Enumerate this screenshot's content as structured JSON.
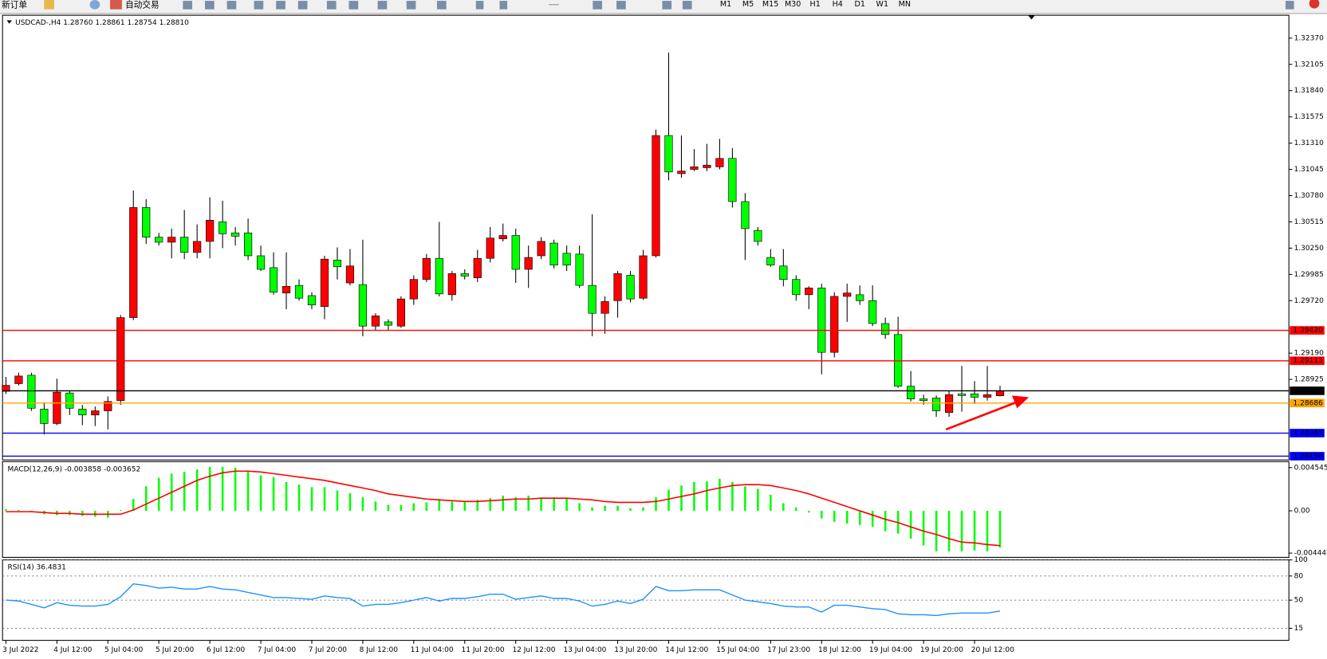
{
  "toolbar": {
    "items": [
      "新订单",
      "自动交易"
    ],
    "timeframes": [
      "M1",
      "M5",
      "M15",
      "M30",
      "H1",
      "H4",
      "D1",
      "W1",
      "MN"
    ]
  },
  "chart_data": [
    {
      "type": "candlestick",
      "title": "USDCAD-,H4  1.28760 1.28861 1.28754 1.28810",
      "categories": [
        "3 Jul 2022",
        null,
        null,
        null,
        "4 Jul 12:00",
        null,
        null,
        null,
        "5 Jul 04:00",
        null,
        null,
        null,
        "5 Jul 20:00",
        null,
        null,
        null,
        "6 Jul 12:00",
        null,
        null,
        null,
        "7 Jul 04:00",
        null,
        null,
        null,
        "7 Jul 20:00",
        null,
        null,
        null,
        "8 Jul 12:00",
        null,
        null,
        null,
        "11 Jul 04:00",
        null,
        null,
        null,
        "11 Jul 20:00",
        null,
        null,
        null,
        "12 Jul 12:00",
        null,
        null,
        null,
        "13 Jul 04:00",
        null,
        null,
        null,
        "13 Jul 20:00",
        null,
        null,
        null,
        "14 Jul 12:00",
        null,
        null,
        null,
        "15 Jul 04:00",
        null,
        null,
        null,
        "17 Jul 23:00",
        null,
        null,
        null,
        "18 Jul 12:00",
        null,
        null,
        null,
        "19 Jul 04:00",
        null,
        null,
        null,
        "19 Jul 20:00",
        null,
        null,
        null,
        "20 Jul 12:00",
        null,
        null
      ],
      "open": [
        1.28805,
        1.28882,
        1.28967,
        1.28625,
        1.2848,
        1.28788,
        1.28625,
        1.28566,
        1.28608,
        1.28711,
        1.29549,
        1.3066,
        1.30361,
        1.3031,
        1.30361,
        1.30207,
        1.30318,
        1.30515,
        1.30404,
        1.30404,
        1.30173,
        1.30053,
        1.29797,
        1.29874,
        1.29771,
        1.2966,
        1.3013,
        1.29899,
        1.29882,
        1.29463,
        1.29506,
        1.29463,
        1.29737,
        1.29934,
        1.30147,
        1.2978,
        1.29993,
        1.29951,
        1.30147,
        1.30344,
        1.30378,
        1.30036,
        1.30173,
        1.30301,
        1.30198,
        1.3019,
        1.29874,
        1.29592,
        1.2972,
        1.29976,
        1.29745,
        1.30173,
        1.31387,
        1.31002,
        1.31045,
        1.31062,
        1.31071,
        1.31156,
        1.3072,
        1.30429,
        1.30156,
        1.3007,
        1.29934,
        1.2978,
        1.29848,
        1.29198,
        1.29763,
        1.2978,
        1.2972,
        1.29489,
        1.29378,
        1.28856,
        1.28728,
        1.28737,
        1.28591,
        1.28779,
        1.28779,
        1.28745,
        1.2876
      ],
      "high": [
        1.2895,
        1.28993,
        1.28993,
        1.28694,
        1.28933,
        1.28805,
        1.28668,
        1.28651,
        1.28754,
        1.29574,
        1.30831,
        1.30746,
        1.30404,
        1.30447,
        1.30635,
        1.30489,
        1.30763,
        1.30729,
        1.30464,
        1.30549,
        1.30276,
        1.30207,
        1.30207,
        1.29934,
        1.29805,
        1.30173,
        1.30258,
        1.30241,
        1.30335,
        1.29592,
        1.29532,
        1.29763,
        1.29976,
        1.3019,
        1.30515,
        1.30019,
        1.30036,
        1.30233,
        1.30464,
        1.30498,
        1.30447,
        1.30276,
        1.30361,
        1.30335,
        1.30276,
        1.30276,
        1.30592,
        1.29763,
        1.30019,
        1.30019,
        1.30233,
        1.31447,
        1.32225,
        1.31387,
        1.3125,
        1.31302,
        1.31353,
        1.31259,
        1.30806,
        1.30464,
        1.30241,
        1.30241,
        1.29976,
        1.29865,
        1.29891,
        1.29805,
        1.29891,
        1.29874,
        1.29874,
        1.29549,
        1.29557,
        1.2901,
        1.28771,
        1.28762,
        1.28805,
        1.29061,
        1.28908,
        1.29061,
        1.28861
      ],
      "low": [
        1.28779,
        1.28865,
        1.28608,
        1.28369,
        1.28463,
        1.28566,
        1.28463,
        1.28454,
        1.2842,
        1.28668,
        1.29523,
        1.30293,
        1.30276,
        1.30147,
        1.30139,
        1.30147,
        1.30147,
        1.3025,
        1.30276,
        1.3013,
        1.30019,
        1.2978,
        1.29634,
        1.2972,
        1.29634,
        1.29532,
        1.29934,
        1.29874,
        1.29361,
        1.29421,
        1.29421,
        1.29446,
        1.29677,
        1.29908,
        1.29763,
        1.2972,
        1.29934,
        1.29908,
        1.30105,
        1.30318,
        1.29899,
        1.29848,
        1.30139,
        1.30045,
        1.30019,
        1.29848,
        1.29361,
        1.29386,
        1.29549,
        1.29703,
        1.29728,
        1.30156,
        1.30934,
        1.3096,
        1.31028,
        1.31028,
        1.31045,
        1.3066,
        1.3013,
        1.30276,
        1.30062,
        1.29865,
        1.2972,
        1.29634,
        1.28976,
        1.29147,
        1.29506,
        1.29677,
        1.29463,
        1.29335,
        1.28839,
        1.28702,
        1.28668,
        1.28548,
        1.28548,
        1.286,
        1.28677,
        1.28711,
        1.28754
      ],
      "close": [
        1.28865,
        1.28959,
        1.28634,
        1.2848,
        1.28796,
        1.28634,
        1.28566,
        1.28608,
        1.28702,
        1.29549,
        1.3066,
        1.30361,
        1.3031,
        1.30361,
        1.30207,
        1.30318,
        1.30532,
        1.30395,
        1.3037,
        1.30173,
        1.30036,
        1.29805,
        1.29865,
        1.29745,
        1.29677,
        1.30139,
        1.30062,
        1.3007,
        1.29463,
        1.29566,
        1.29472,
        1.29737,
        1.29934,
        1.30147,
        1.29788,
        1.29993,
        1.29968,
        1.30147,
        1.30352,
        1.30378,
        1.30036,
        1.30156,
        1.30318,
        1.30079,
        1.30079,
        1.29874,
        1.29592,
        1.29711,
        1.29993,
        1.29737,
        1.30173,
        1.31387,
        1.31019,
        1.31028,
        1.31071,
        1.31088,
        1.31156,
        1.3072,
        1.30447,
        1.30318,
        1.30079,
        1.29934,
        1.2978,
        1.29848,
        1.29198,
        1.29763,
        1.29797,
        1.2972,
        1.29489,
        1.29378,
        1.28856,
        1.28728,
        1.28711,
        1.28608,
        1.28771,
        1.28762,
        1.28745,
        1.28771,
        1.2881
      ],
      "up_color": "#ff0000",
      "down_color": "#00ff00",
      "ylim": [
        1.28112,
        1.32601
      ],
      "yticks": [
        {
          "value": 1.3237,
          "label": "1.32370"
        },
        {
          "value": 1.32105,
          "label": "1.32105"
        },
        {
          "value": 1.3184,
          "label": "1.31840"
        },
        {
          "value": 1.31575,
          "label": "1.31575"
        },
        {
          "value": 1.3131,
          "label": "1.31310"
        },
        {
          "value": 1.31045,
          "label": "1.31045"
        },
        {
          "value": 1.3078,
          "label": "1.30780"
        },
        {
          "value": 1.30515,
          "label": "1.30515"
        },
        {
          "value": 1.3025,
          "label": "1.30250"
        },
        {
          "value": 1.29985,
          "label": "1.29985"
        },
        {
          "value": 1.2972,
          "label": "1.29720"
        },
        {
          "value": 1.2919,
          "label": "1.29190"
        },
        {
          "value": 1.28925,
          "label": "1.28925"
        }
      ],
      "hlines": [
        {
          "value": 1.2942,
          "label": "1.29420",
          "color": "#ff0000"
        },
        {
          "value": 1.29113,
          "label": "1.29113",
          "color": "#ff0000"
        },
        {
          "value": 1.2881,
          "label": "1.28810",
          "color": "#000000"
        },
        {
          "value": 1.28686,
          "label": "1.28686",
          "color": "#ffa500"
        },
        {
          "value": 1.28383,
          "label": "1.28383",
          "color": "#0000ff"
        },
        {
          "value": 1.2815,
          "label": "1.28150",
          "color": "#0000ff"
        }
      ]
    },
    {
      "type": "macd",
      "title": "MACD(12,26,9) -0.003858 -0.003652",
      "values": [
        0.000178,
        8.9e-05,
        -8.9e-05,
        -0.000355,
        -0.000444,
        -0.000444,
        -0.000533,
        -0.000622,
        -0.00071,
        8.9e-05,
        0.001243,
        0.002575,
        0.003463,
        0.003907,
        0.004085,
        0.004351,
        0.004618,
        0.004618,
        0.004529,
        0.004174,
        0.00373,
        0.003552,
        0.003019,
        0.002753,
        0.002486,
        0.002486,
        0.002131,
        0.001865,
        0.001421,
        0.000977,
        0.000622,
        0.000622,
        0.000799,
        0.000888,
        0.001243,
        0.000977,
        0.001066,
        0.001154,
        0.001332,
        0.001598,
        0.001421,
        0.001598,
        0.001421,
        0.001421,
        0.001332,
        0.000799,
        0.000355,
        0.000533,
        0.000533,
        0.000266,
        0.000355,
        0.001421,
        0.00222,
        0.002664,
        0.003019,
        0.003108,
        0.003374,
        0.003019,
        0.002575,
        0.002309,
        0.001687,
        0.000799,
        0.000355,
        -0.000178,
        -0.000799,
        -0.001154,
        -0.001332,
        -0.00151,
        -0.001687,
        -0.002131,
        -0.002398,
        -0.00293,
        -0.003641,
        -0.004262,
        -0.004262,
        -0.004262,
        -0.004174,
        -0.004262,
        -0.003858
      ],
      "color": "#00ff00",
      "signal": [
        -9e-05,
        -9e-05,
        -9e-05,
        -0.00018,
        -0.00027,
        -0.00027,
        -0.00036,
        -0.00036,
        -0.00036,
        -0.00036,
        9e-05,
        0.00071,
        0.00133,
        0.00195,
        0.00258,
        0.0032,
        0.00364,
        0.004,
        0.00417,
        0.00417,
        0.00408,
        0.00391,
        0.00373,
        0.00355,
        0.00337,
        0.0032,
        0.00293,
        0.00266,
        0.0024,
        0.00213,
        0.00178,
        0.0016,
        0.00142,
        0.00124,
        0.00115,
        0.00107,
        0.00098,
        0.00098,
        0.00107,
        0.00115,
        0.00124,
        0.00124,
        0.00133,
        0.00133,
        0.00133,
        0.00124,
        0.00115,
        0.00098,
        0.00089,
        0.00089,
        0.00089,
        0.00098,
        0.00124,
        0.00151,
        0.00178,
        0.00213,
        0.0024,
        0.00266,
        0.00275,
        0.00275,
        0.00266,
        0.0024,
        0.00213,
        0.00178,
        0.00133,
        0.00089,
        0.00044,
        0,
        -0.00044,
        -0.00089,
        -0.00124,
        -0.00169,
        -0.00213,
        -0.00249,
        -0.00293,
        -0.00329,
        -0.00337,
        -0.00355,
        -0.003652
      ],
      "signal_color": "#ff0000",
      "ylim": [
        -0.00489,
        0.00517
      ],
      "yticks": [
        0.004545,
        {
          "value": 0,
          "label": "0.00"
        },
        -0.004443
      ]
    },
    {
      "type": "line",
      "title": "RSI(14) 36.4831",
      "values": [
        50,
        48.9,
        44.7,
        40.4,
        46.8,
        43.6,
        42.6,
        42.6,
        44.7,
        54.3,
        70.2,
        68.1,
        64.9,
        66.0,
        63.8,
        63.8,
        67.0,
        63.8,
        62.8,
        59.6,
        56.4,
        53.2,
        53.2,
        52.1,
        51.1,
        55.3,
        53.2,
        52.1,
        42.6,
        44.7,
        44.7,
        46.8,
        50,
        53.2,
        48.9,
        52.1,
        52.1,
        54.3,
        57.4,
        57.4,
        51.1,
        53.2,
        55.3,
        52.1,
        52.1,
        48.9,
        42.6,
        44.7,
        48.9,
        45.7,
        51.1,
        67.0,
        61.7,
        61.7,
        62.8,
        62.8,
        62.8,
        56.4,
        50,
        47.9,
        45.7,
        42.6,
        41.5,
        41.5,
        35.1,
        43.6,
        43.6,
        41.5,
        39.4,
        38.3,
        33.0,
        31.9,
        31.9,
        30.9,
        33.0,
        34.0,
        34.0,
        34.0,
        36.4831
      ],
      "color": "#1e90ff",
      "ylim": [
        0,
        100
      ],
      "yticks": [
        100,
        80,
        50,
        15
      ]
    }
  ]
}
